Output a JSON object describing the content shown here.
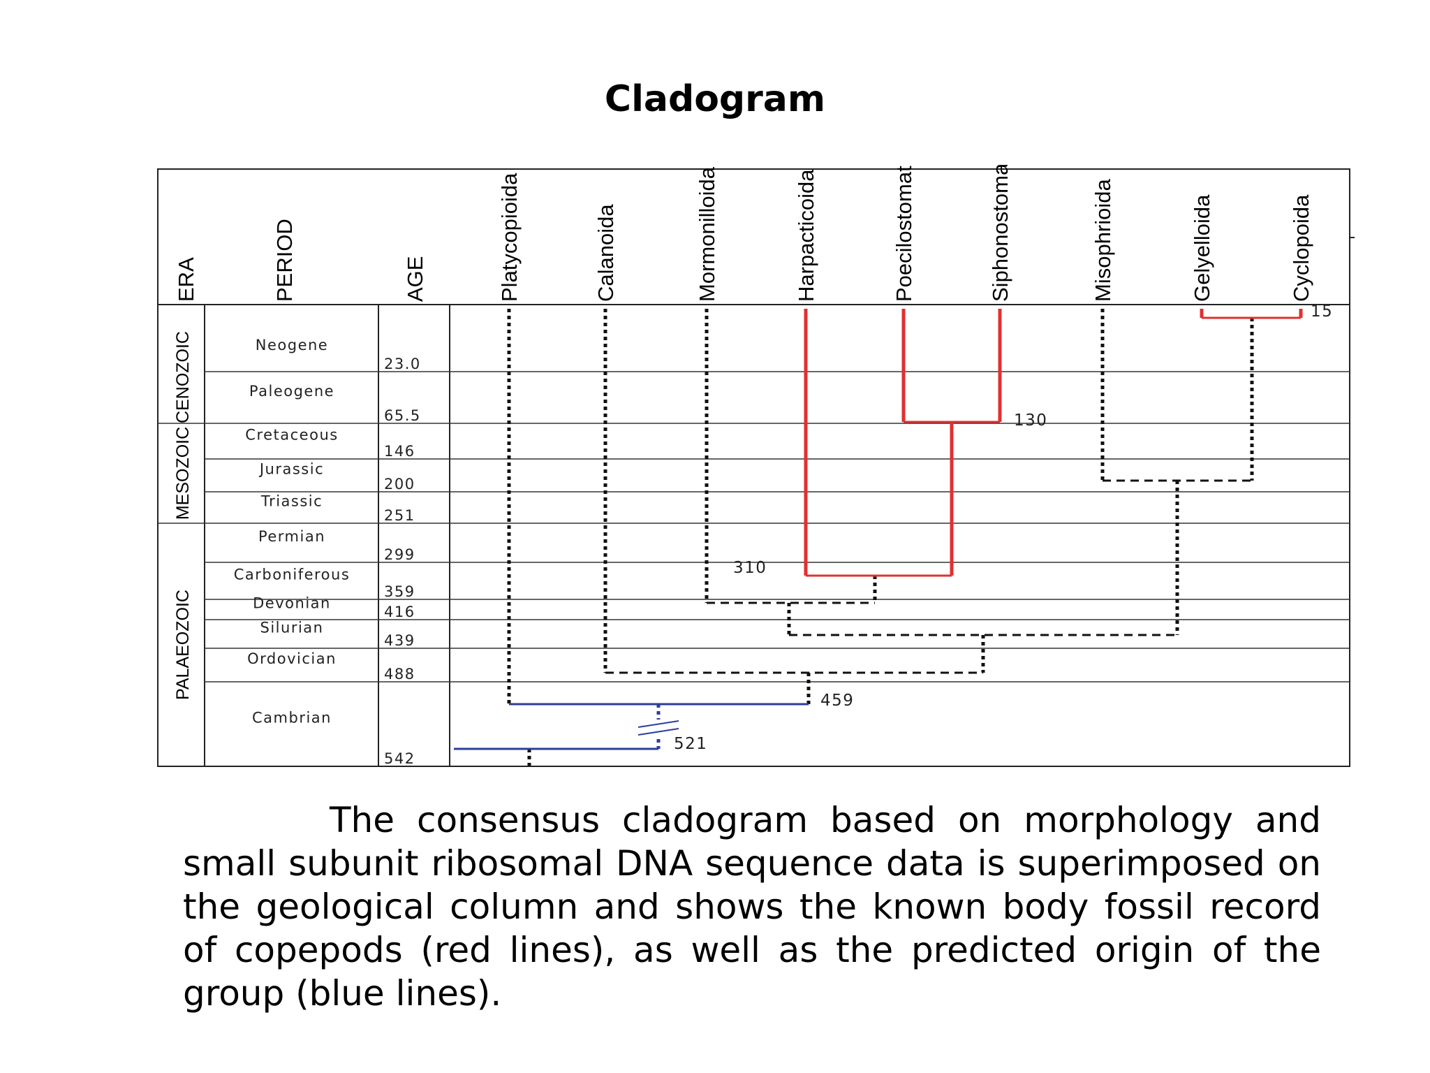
{
  "title": "Cladogram",
  "headers": {
    "era": "ERA",
    "period": "PERIOD",
    "age": "AGE"
  },
  "eras": [
    {
      "name": "CENOZOIC",
      "from": 0,
      "to": 65.5
    },
    {
      "name": "MESOZOIC",
      "from": 65.5,
      "to": 251
    },
    {
      "name": "PALAEOZOIC",
      "from": 251,
      "to": 542
    }
  ],
  "periods": [
    {
      "name": "Neogene",
      "end_age": "23.0"
    },
    {
      "name": "Paleogene",
      "end_age": "65.5"
    },
    {
      "name": "Cretaceous",
      "end_age": "146"
    },
    {
      "name": "Jurassic",
      "end_age": "200"
    },
    {
      "name": "Triassic",
      "end_age": "251"
    },
    {
      "name": "Permian",
      "end_age": "299"
    },
    {
      "name": "Carboniferous",
      "end_age": "359"
    },
    {
      "name": "Devonian",
      "end_age": "416"
    },
    {
      "name": "Silurian",
      "end_age": "439"
    },
    {
      "name": "Ordovician",
      "end_age": "488"
    },
    {
      "name": "Cambrian",
      "end_age": "542"
    }
  ],
  "taxa": [
    "Platycopioida",
    "Calanoida",
    "Mormonilloida",
    "Harpacticoida",
    "Poecilostomatoida",
    "Siphonostomatoida",
    "Misophrioida",
    "Gelyelloida",
    "Cyclopoida"
  ],
  "node_labels": [
    "15",
    "130",
    "310",
    "459",
    "521"
  ],
  "colors": {
    "fossil_record": "#e03030",
    "predicted_origin": "#2b3f9a",
    "inferred": "#111111"
  },
  "caption": "The consensus cladogram based on morphology and small subunit ribosomal DNA sequence data is superimposed on the geological column and shows the known body fossil record of copepods (red lines), as well as the predicted origin of the group (blue lines)."
}
